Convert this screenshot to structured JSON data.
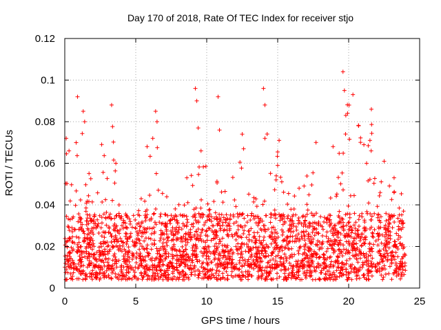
{
  "chart_data": {
    "type": "scatter",
    "title": "Day 170 of 2018, Rate Of TEC Index for receiver stjo",
    "xlabel": "GPS time / hours",
    "ylabel": "ROTI / TECUs",
    "xlim": [
      0,
      25
    ],
    "ylim": [
      0,
      0.12
    ],
    "xticks": [
      0,
      5,
      10,
      15,
      20,
      25
    ],
    "xtick_labels": [
      "0",
      "5",
      "10",
      "15",
      "20",
      "25"
    ],
    "yticks": [
      0,
      0.02,
      0.04,
      0.06,
      0.08,
      0.1,
      0.12
    ],
    "ytick_labels": [
      "0",
      "0.02",
      "0.04",
      "0.06",
      "0.08",
      "0.1",
      "0.12"
    ],
    "grid": true,
    "marker": "+",
    "color": "#ff0000",
    "series": [
      {
        "name": "ROTI",
        "x_range": [
          0,
          24
        ],
        "typical_band": [
          0.005,
          0.035
        ],
        "points_note": "dense cloud of samples; outliers listed as x/y pairs",
        "outliers": [
          {
            "x": 0.1,
            "y": 0.072
          },
          {
            "x": 0.3,
            "y": 0.066
          },
          {
            "x": 0.9,
            "y": 0.092
          },
          {
            "x": 1.3,
            "y": 0.085
          },
          {
            "x": 1.4,
            "y": 0.08
          },
          {
            "x": 2.6,
            "y": 0.069
          },
          {
            "x": 3.3,
            "y": 0.088
          },
          {
            "x": 3.6,
            "y": 0.06
          },
          {
            "x": 5.8,
            "y": 0.068
          },
          {
            "x": 6.2,
            "y": 0.072
          },
          {
            "x": 6.4,
            "y": 0.085
          },
          {
            "x": 6.5,
            "y": 0.08
          },
          {
            "x": 8.6,
            "y": 0.053
          },
          {
            "x": 9.2,
            "y": 0.096
          },
          {
            "x": 9.3,
            "y": 0.09
          },
          {
            "x": 9.4,
            "y": 0.077
          },
          {
            "x": 9.6,
            "y": 0.066
          },
          {
            "x": 10.8,
            "y": 0.092
          },
          {
            "x": 10.9,
            "y": 0.076
          },
          {
            "x": 12.5,
            "y": 0.074
          },
          {
            "x": 12.6,
            "y": 0.067
          },
          {
            "x": 14.0,
            "y": 0.096
          },
          {
            "x": 14.1,
            "y": 0.088
          },
          {
            "x": 14.1,
            "y": 0.072
          },
          {
            "x": 15.1,
            "y": 0.071
          },
          {
            "x": 17.7,
            "y": 0.07
          },
          {
            "x": 18.9,
            "y": 0.068
          },
          {
            "x": 19.6,
            "y": 0.104
          },
          {
            "x": 19.7,
            "y": 0.095
          },
          {
            "x": 19.8,
            "y": 0.083
          },
          {
            "x": 20.3,
            "y": 0.093
          },
          {
            "x": 20.7,
            "y": 0.078
          },
          {
            "x": 21.6,
            "y": 0.086
          },
          {
            "x": 21.5,
            "y": 0.071
          },
          {
            "x": 22.5,
            "y": 0.061
          },
          {
            "x": 23.2,
            "y": 0.053
          }
        ]
      }
    ]
  }
}
